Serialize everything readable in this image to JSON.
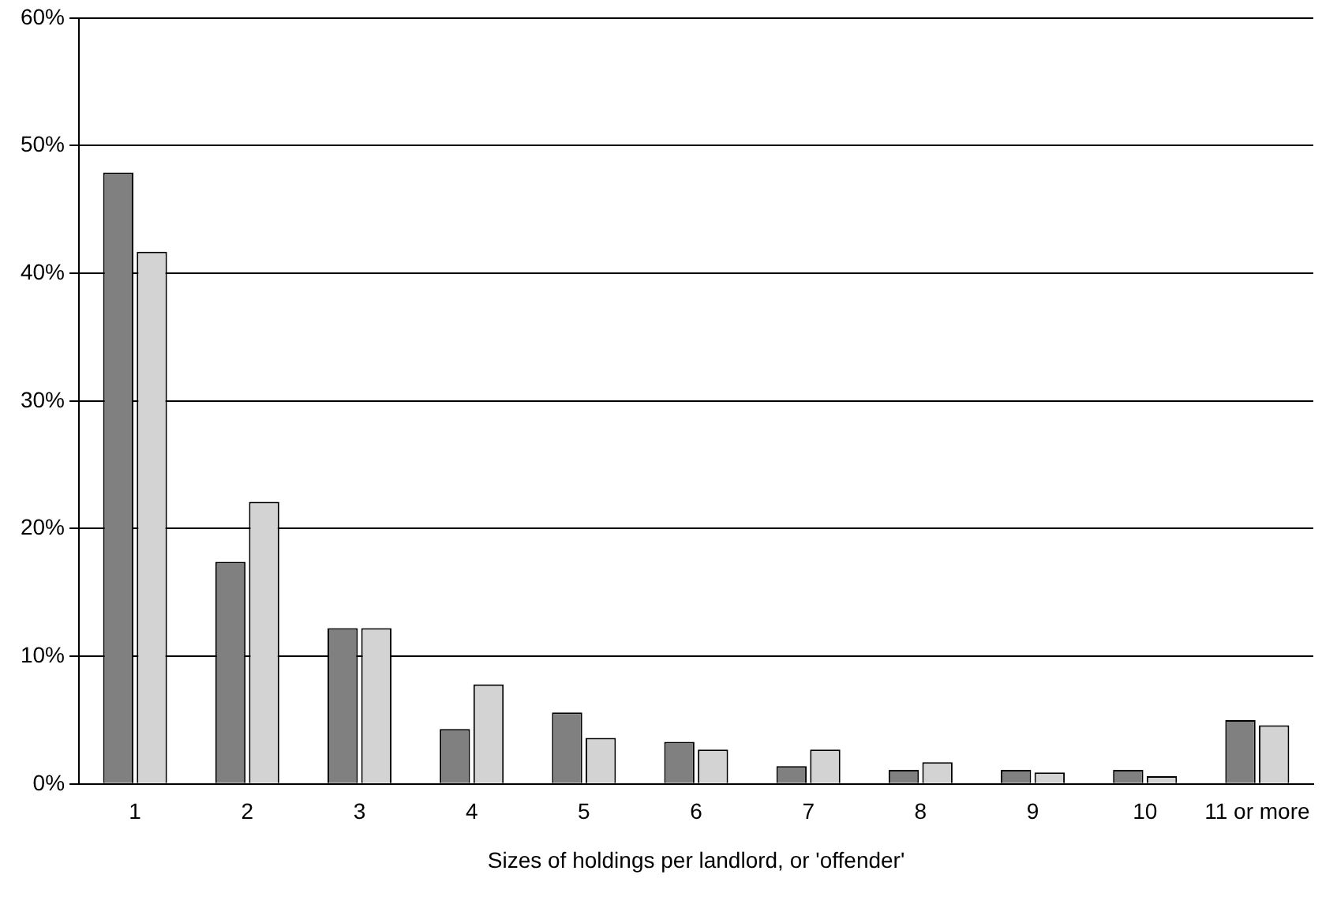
{
  "chart_data": {
    "type": "bar",
    "xlabel": "Sizes of holdings per landlord, or 'offender'",
    "categories": [
      "1",
      "2",
      "3",
      "4",
      "5",
      "6",
      "7",
      "8",
      "9",
      "10",
      "11 or more"
    ],
    "series": [
      {
        "color": "#808080",
        "values": [
          47.9,
          17.4,
          12.2,
          4.3,
          5.6,
          3.3,
          1.4,
          1.1,
          1.1,
          1.1,
          5.0
        ]
      },
      {
        "color": "#d3d3d3",
        "values": [
          41.7,
          22.1,
          12.2,
          7.8,
          3.6,
          2.7,
          2.7,
          1.7,
          0.9,
          0.6,
          4.6
        ]
      }
    ],
    "ylim": [
      0,
      60
    ],
    "yticks": [
      {
        "value": 0,
        "label": "0%"
      },
      {
        "value": 10,
        "label": "10%"
      },
      {
        "value": 20,
        "label": "20%"
      },
      {
        "value": 30,
        "label": "30%"
      },
      {
        "value": 40,
        "label": "40%"
      },
      {
        "value": 50,
        "label": "50%"
      },
      {
        "value": 60,
        "label": "60%"
      }
    ],
    "grid": "y",
    "legend": false
  }
}
